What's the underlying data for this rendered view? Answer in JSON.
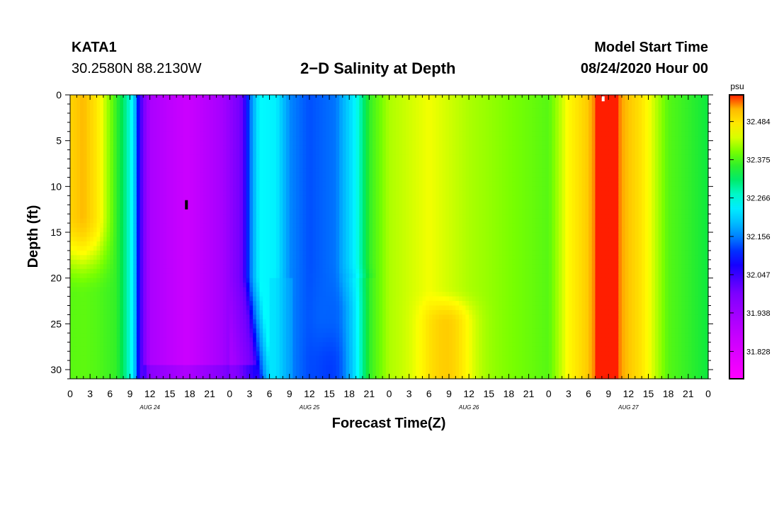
{
  "header": {
    "station_name": "KATA1",
    "station_coords": "30.2580N 88.2130W",
    "title": "2−D Salinity at Depth",
    "model_start_label": "Model Start Time",
    "model_start_value": "08/24/2020 Hour 00"
  },
  "chart_data": {
    "type": "heatmap",
    "title": "2−D Salinity at Depth",
    "xlabel": "Forecast Time(Z)",
    "ylabel": "Depth (ft)",
    "x_range_hours": [
      0,
      96
    ],
    "ylim": [
      31,
      0
    ],
    "y_ticks": [
      0,
      5,
      10,
      15,
      20,
      25,
      30
    ],
    "x_tick_labels": [
      "0",
      "3",
      "6",
      "9",
      "12",
      "15",
      "18",
      "21",
      "0",
      "3",
      "6",
      "9",
      "12",
      "15",
      "18",
      "21",
      "0",
      "3",
      "6",
      "9",
      "12",
      "15",
      "18",
      "21",
      "0",
      "3",
      "6",
      "9",
      "12",
      "15",
      "18",
      "21",
      "0"
    ],
    "date_labels": [
      {
        "label": "AUG 24",
        "hour": 12
      },
      {
        "label": "AUG 25",
        "hour": 36
      },
      {
        "label": "AUG 26",
        "hour": 60
      },
      {
        "label": "AUG 27",
        "hour": 84
      }
    ],
    "colorbar": {
      "unit": "psu",
      "min": 31.75,
      "max": 32.56,
      "tick_labels": [
        "32.484",
        "32.375",
        "32.266",
        "32.156",
        "32.047",
        "31.938",
        "31.828"
      ],
      "tick_values": [
        32.484,
        32.375,
        32.266,
        32.156,
        32.047,
        31.938,
        31.828
      ]
    },
    "surface_salinity_profile": [
      {
        "hour": 0,
        "psu": 32.5
      },
      {
        "hour": 2,
        "psu": 32.52
      },
      {
        "hour": 4,
        "psu": 32.48
      },
      {
        "hour": 6,
        "psu": 32.4
      },
      {
        "hour": 8,
        "psu": 32.32
      },
      {
        "hour": 9.5,
        "psu": 32.24
      },
      {
        "hour": 10.5,
        "psu": 32.05
      },
      {
        "hour": 12,
        "psu": 31.92
      },
      {
        "hour": 17.5,
        "psu": 31.86
      },
      {
        "hour": 23,
        "psu": 31.93
      },
      {
        "hour": 26,
        "psu": 32.02
      },
      {
        "hour": 27,
        "psu": 32.14
      },
      {
        "hour": 28.5,
        "psu": 32.25
      },
      {
        "hour": 31,
        "psu": 32.24
      },
      {
        "hour": 33,
        "psu": 32.16
      },
      {
        "hour": 36,
        "psu": 32.13
      },
      {
        "hour": 40,
        "psu": 32.15
      },
      {
        "hour": 43,
        "psu": 32.25
      },
      {
        "hour": 45,
        "psu": 32.36
      },
      {
        "hour": 48,
        "psu": 32.42
      },
      {
        "hour": 54,
        "psu": 32.45
      },
      {
        "hour": 60,
        "psu": 32.42
      },
      {
        "hour": 66,
        "psu": 32.4
      },
      {
        "hour": 72,
        "psu": 32.38
      },
      {
        "hour": 75,
        "psu": 32.46
      },
      {
        "hour": 78,
        "psu": 32.51
      },
      {
        "hour": 80,
        "psu": 32.6
      },
      {
        "hour": 81.5,
        "psu": 32.62
      },
      {
        "hour": 83,
        "psu": 32.53
      },
      {
        "hour": 86,
        "psu": 32.48
      },
      {
        "hour": 88,
        "psu": 32.43
      },
      {
        "hour": 90,
        "psu": 32.38
      },
      {
        "hour": 96,
        "psu": 32.34
      }
    ],
    "markers": [
      {
        "name": "minimum-marker",
        "hour": 17.5,
        "depth_ft": 12,
        "color": "#000000"
      },
      {
        "name": "maximum-marker",
        "hour": 80.2,
        "depth_ft": 0.2,
        "color": "#ffffff"
      }
    ]
  }
}
